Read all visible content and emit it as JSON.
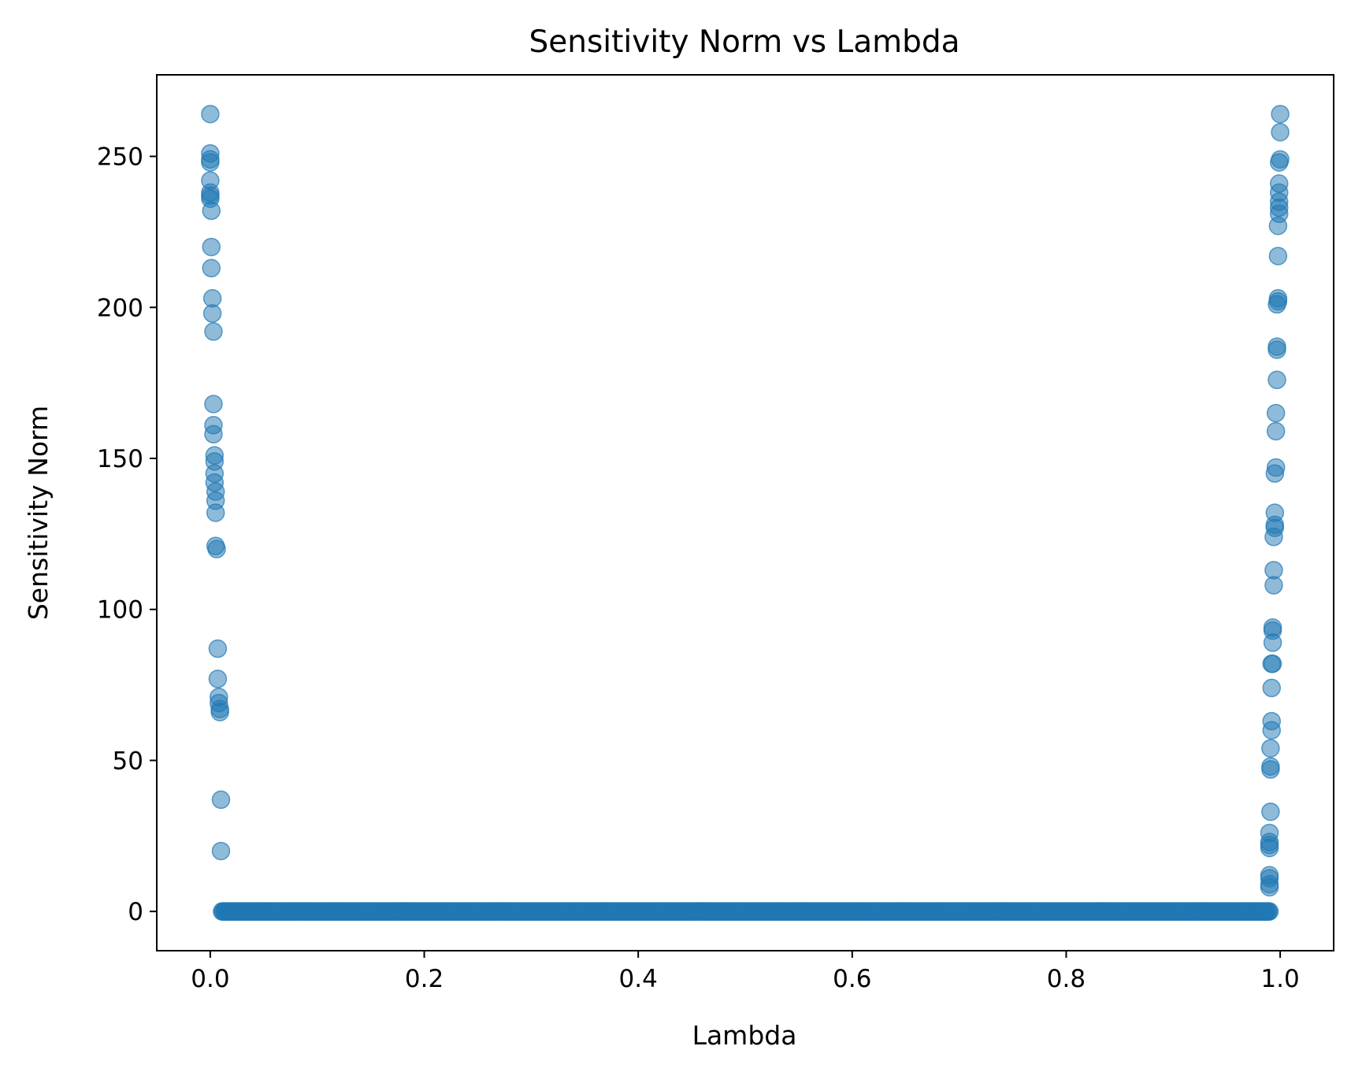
{
  "chart_data": {
    "type": "scatter",
    "title": "Sensitivity Norm vs Lambda",
    "xlabel": "Lambda",
    "ylabel": "Sensitivity Norm",
    "xlim": [
      -0.05,
      1.05
    ],
    "ylim": [
      -13,
      277
    ],
    "xticks": [
      "0.0",
      "0.2",
      "0.4",
      "0.6",
      "0.8",
      "1.0"
    ],
    "xtick_values": [
      0.0,
      0.2,
      0.4,
      0.6,
      0.8,
      1.0
    ],
    "yticks": [
      "0",
      "50",
      "100",
      "150",
      "200",
      "250"
    ],
    "ytick_values": [
      0,
      50,
      100,
      150,
      200,
      250
    ],
    "grid": false,
    "legend": "none",
    "marker_color": "#1f77b4",
    "marker_alpha": 0.5,
    "series": [
      {
        "points": [
          [
            0.0,
            264
          ],
          [
            0.0,
            251
          ],
          [
            0.0,
            249
          ],
          [
            0.0,
            248
          ],
          [
            0.0,
            242
          ],
          [
            0.0,
            238
          ],
          [
            0.0,
            237
          ],
          [
            0.0,
            236
          ],
          [
            0.001,
            232
          ],
          [
            0.001,
            220
          ],
          [
            0.001,
            213
          ],
          [
            0.002,
            203
          ],
          [
            0.002,
            198
          ],
          [
            0.003,
            192
          ],
          [
            0.003,
            168
          ],
          [
            0.003,
            161
          ],
          [
            0.003,
            158
          ],
          [
            0.004,
            151
          ],
          [
            0.004,
            149
          ],
          [
            0.004,
            145
          ],
          [
            0.004,
            142
          ],
          [
            0.005,
            139
          ],
          [
            0.005,
            136
          ],
          [
            0.005,
            132
          ],
          [
            0.005,
            121
          ],
          [
            0.006,
            120
          ],
          [
            0.007,
            87
          ],
          [
            0.007,
            77
          ],
          [
            0.008,
            71
          ],
          [
            0.008,
            69
          ],
          [
            0.009,
            67
          ],
          [
            0.009,
            66
          ],
          [
            0.01,
            37
          ],
          [
            0.01,
            20
          ],
          [
            0.99,
            8
          ],
          [
            0.99,
            9
          ],
          [
            0.99,
            11
          ],
          [
            0.99,
            12
          ],
          [
            0.99,
            21
          ],
          [
            0.99,
            22
          ],
          [
            0.99,
            23
          ],
          [
            0.99,
            26
          ],
          [
            0.991,
            33
          ],
          [
            0.991,
            47
          ],
          [
            0.991,
            48
          ],
          [
            0.991,
            54
          ],
          [
            0.992,
            60
          ],
          [
            0.992,
            63
          ],
          [
            0.992,
            74
          ],
          [
            0.992,
            82
          ],
          [
            0.993,
            82
          ],
          [
            0.993,
            89
          ],
          [
            0.993,
            93
          ],
          [
            0.993,
            94
          ],
          [
            0.994,
            108
          ],
          [
            0.994,
            113
          ],
          [
            0.994,
            124
          ],
          [
            0.995,
            127
          ],
          [
            0.995,
            128
          ],
          [
            0.995,
            132
          ],
          [
            0.995,
            145
          ],
          [
            0.996,
            147
          ],
          [
            0.996,
            159
          ],
          [
            0.996,
            165
          ],
          [
            0.997,
            176
          ],
          [
            0.997,
            186
          ],
          [
            0.997,
            187
          ],
          [
            0.997,
            201
          ],
          [
            0.998,
            202
          ],
          [
            0.998,
            203
          ],
          [
            0.998,
            217
          ],
          [
            0.998,
            227
          ],
          [
            0.999,
            231
          ],
          [
            0.999,
            233
          ],
          [
            0.999,
            235
          ],
          [
            0.999,
            238
          ],
          [
            0.999,
            241
          ],
          [
            0.999,
            248
          ],
          [
            1.0,
            249
          ],
          [
            1.0,
            258
          ],
          [
            1.0,
            264
          ]
        ],
        "baseline": {
          "x_start": 0.011,
          "x_end": 0.99,
          "x_step": 0.001,
          "y": 0
        }
      }
    ]
  }
}
